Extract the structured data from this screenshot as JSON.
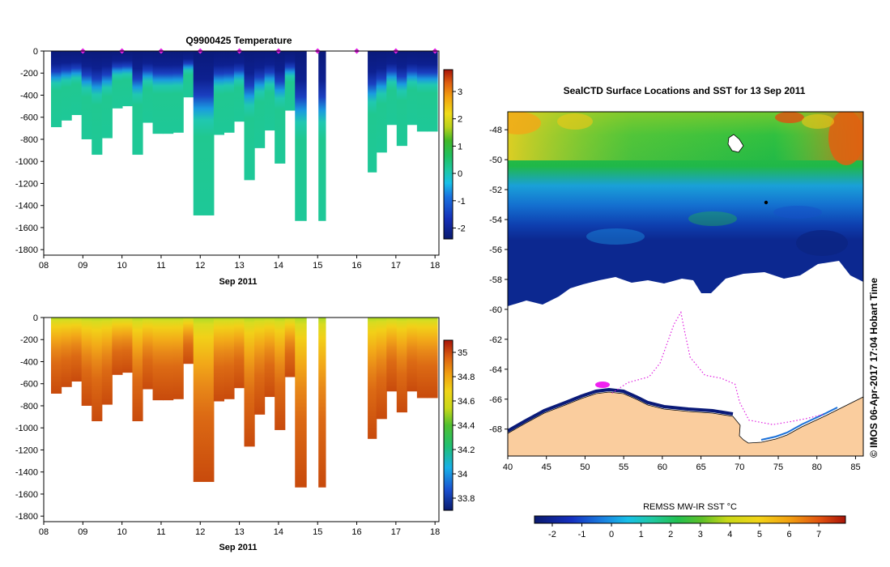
{
  "chart_data": [
    {
      "id": "temperature",
      "type": "heatmap",
      "title": "Q9900425  Temperature",
      "xlabel": "Sep 2011",
      "x_ticks": [
        "08",
        "09",
        "10",
        "11",
        "12",
        "13",
        "14",
        "15",
        "16",
        "17",
        "18"
      ],
      "xlim": [
        8,
        18.1
      ],
      "y_ticks": [
        "0",
        "-200",
        "-400",
        "-600",
        "-800",
        "-1000",
        "-1200",
        "-1400",
        "-1600",
        "-1800"
      ],
      "ylim": [
        -1850,
        0
      ],
      "colorbar_ticks": [
        "3",
        "2",
        "1",
        "0",
        "-1",
        "-2"
      ],
      "colorbar_range": [
        -2.4,
        3.8
      ],
      "surface_markers_day": [
        9.0,
        10.0,
        11.0,
        12.0,
        13.0,
        14.0,
        15.0,
        16.0,
        17.0,
        18.0
      ],
      "profile_depths_m": [
        690,
        630,
        580,
        800,
        940,
        790,
        520,
        500,
        940,
        650,
        750,
        750,
        740,
        420,
        1490,
        1490,
        760,
        740,
        640,
        1170,
        880,
        720,
        1020,
        540,
        1540,
        1540,
        1540,
        0,
        0,
        0,
        950,
        1100,
        920,
        670,
        860,
        670,
        730,
        730
      ],
      "gap_day_ranges": [
        [
          14.72,
          15.02
        ],
        [
          15.78,
          16.28
        ]
      ]
    },
    {
      "id": "salinity",
      "type": "heatmap",
      "title": "",
      "xlabel": "Sep 2011",
      "x_ticks": [
        "08",
        "09",
        "10",
        "11",
        "12",
        "13",
        "14",
        "15",
        "16",
        "17",
        "18"
      ],
      "xlim": [
        8,
        18.1
      ],
      "y_ticks": [
        "0",
        "-200",
        "-400",
        "-600",
        "-800",
        "-1000",
        "-1200",
        "-1400",
        "-1600",
        "-1800"
      ],
      "ylim": [
        -1850,
        0
      ],
      "colorbar_ticks": [
        "35",
        "34.8",
        "34.6",
        "34.4",
        "34.2",
        "34",
        "33.8"
      ],
      "colorbar_range": [
        33.7,
        35.1
      ]
    },
    {
      "id": "sst_map",
      "type": "heatmap",
      "title": "SealCTD Surface Locations and SST for 13 Sep 2011",
      "lon_ticks": [
        "40",
        "45",
        "50",
        "55",
        "60",
        "65",
        "70",
        "75",
        "80",
        "85"
      ],
      "lon_range": [
        40,
        86
      ],
      "lat_ticks": [
        "-48",
        "-50",
        "-52",
        "-54",
        "-56",
        "-58",
        "-60",
        "-62",
        "-64",
        "-66",
        "-68"
      ],
      "lat_range": [
        -69.8,
        -46.8
      ],
      "colorbar_label": "REMSS MW-IR SST °C",
      "colorbar_ticks": [
        "-2",
        "-1",
        "0",
        "1",
        "2",
        "3",
        "4",
        "5",
        "6",
        "7"
      ],
      "colorbar_range": [
        -2.6,
        7.9
      ],
      "credit": "© IMOS 06-Apr-2017 17:04 Hobart Time",
      "seal_track_lonlat": [
        [
          53.5,
          -65.6
        ],
        [
          55.5,
          -64.9
        ],
        [
          58.3,
          -64.5
        ],
        [
          59.7,
          -63.6
        ],
        [
          60.6,
          -62.3
        ],
        [
          61.5,
          -61.0
        ],
        [
          62.4,
          -60.2
        ],
        [
          62.9,
          -61.5
        ],
        [
          63.6,
          -63.2
        ],
        [
          65.5,
          -64.4
        ],
        [
          67.6,
          -64.6
        ],
        [
          69.4,
          -65.0
        ],
        [
          70.0,
          -66.2
        ],
        [
          71.2,
          -67.4
        ],
        [
          74.3,
          -67.7
        ],
        [
          76.6,
          -67.5
        ],
        [
          78.6,
          -67.3
        ],
        [
          81.0,
          -67.0
        ]
      ]
    }
  ]
}
